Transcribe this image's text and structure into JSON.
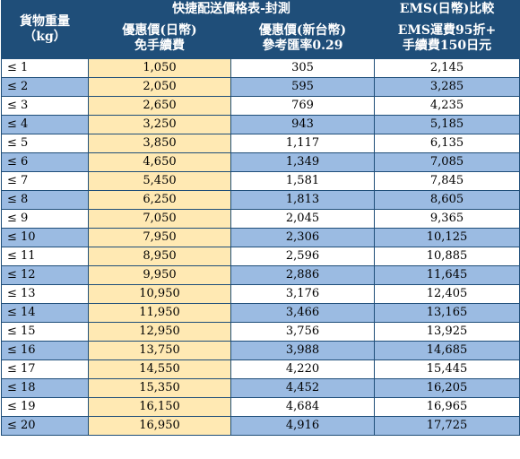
{
  "header": {
    "weight": [
      "貨物重量",
      "（kg）"
    ],
    "express_group": "快捷配送價格表-封測",
    "ems_group": "EMS(日幣)比較",
    "col_yen": [
      "優惠價(日幣)",
      "免手續費"
    ],
    "col_twd": [
      "優惠價(新台幣)",
      "參考匯率0.29"
    ],
    "col_ems": [
      "EMS運費95折+",
      "手續費150日元"
    ]
  },
  "colors": {
    "header_bg": "#1f4e79",
    "row_alt_bg": "#9bbbe2",
    "yen_col_bg": "#ffe9b3"
  },
  "rows": [
    {
      "weight": "≤ 1",
      "yen": "1,050",
      "twd": "305",
      "ems": "2,145"
    },
    {
      "weight": "≤ 2",
      "yen": "2,050",
      "twd": "595",
      "ems": "3,285"
    },
    {
      "weight": "≤ 3",
      "yen": "2,650",
      "twd": "769",
      "ems": "4,235"
    },
    {
      "weight": "≤ 4",
      "yen": "3,250",
      "twd": "943",
      "ems": "5,185"
    },
    {
      "weight": "≤ 5",
      "yen": "3,850",
      "twd": "1,117",
      "ems": "6,135"
    },
    {
      "weight": "≤ 6",
      "yen": "4,650",
      "twd": "1,349",
      "ems": "7,085"
    },
    {
      "weight": "≤ 7",
      "yen": "5,450",
      "twd": "1,581",
      "ems": "7,845"
    },
    {
      "weight": "≤ 8",
      "yen": "6,250",
      "twd": "1,813",
      "ems": "8,605"
    },
    {
      "weight": "≤ 9",
      "yen": "7,050",
      "twd": "2,045",
      "ems": "9,365"
    },
    {
      "weight": "≤ 10",
      "yen": "7,950",
      "twd": "2,306",
      "ems": "10,125"
    },
    {
      "weight": "≤ 11",
      "yen": "8,950",
      "twd": "2,596",
      "ems": "10,885"
    },
    {
      "weight": "≤ 12",
      "yen": "9,950",
      "twd": "2,886",
      "ems": "11,645"
    },
    {
      "weight": "≤ 13",
      "yen": "10,950",
      "twd": "3,176",
      "ems": "12,405"
    },
    {
      "weight": "≤ 14",
      "yen": "11,950",
      "twd": "3,466",
      "ems": "13,165"
    },
    {
      "weight": "≤ 15",
      "yen": "12,950",
      "twd": "3,756",
      "ems": "13,925"
    },
    {
      "weight": "≤ 16",
      "yen": "13,750",
      "twd": "3,988",
      "ems": "14,685"
    },
    {
      "weight": "≤ 17",
      "yen": "14,550",
      "twd": "4,220",
      "ems": "15,445"
    },
    {
      "weight": "≤ 18",
      "yen": "15,350",
      "twd": "4,452",
      "ems": "16,205"
    },
    {
      "weight": "≤ 19",
      "yen": "16,150",
      "twd": "4,684",
      "ems": "16,965"
    },
    {
      "weight": "≤ 20",
      "yen": "16,950",
      "twd": "4,916",
      "ems": "17,725"
    }
  ]
}
